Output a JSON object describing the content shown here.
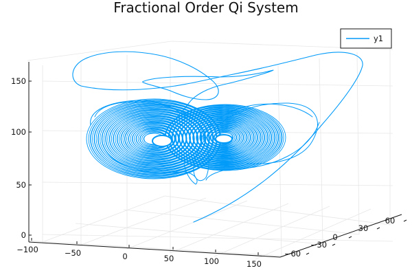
{
  "chart_data": {
    "type": "line",
    "projection": "3d",
    "title": "Fractional Order Qi System",
    "xlabel": "",
    "ylabel": "",
    "zlabel": "",
    "x_ticks": [
      "−100",
      "−50",
      "0",
      "50",
      "100",
      "150"
    ],
    "y_ticks": [
      "−60",
      "−30",
      "0",
      "30",
      "60"
    ],
    "z_ticks": [
      "0",
      "50",
      "100",
      "150"
    ],
    "xlim": [
      -100,
      160
    ],
    "ylim": [
      -75,
      75
    ],
    "zlim": [
      -5,
      168
    ],
    "grid": true,
    "legend": {
      "position": "top-right",
      "entries": [
        "y1"
      ]
    },
    "series": [
      {
        "name": "y1",
        "color": "#009AF9",
        "description": "trajectory starting near (100, 0, 10), rising to ~155, then spiralling onto a two-lobed attractor centred near z ≈ 100"
      }
    ]
  }
}
